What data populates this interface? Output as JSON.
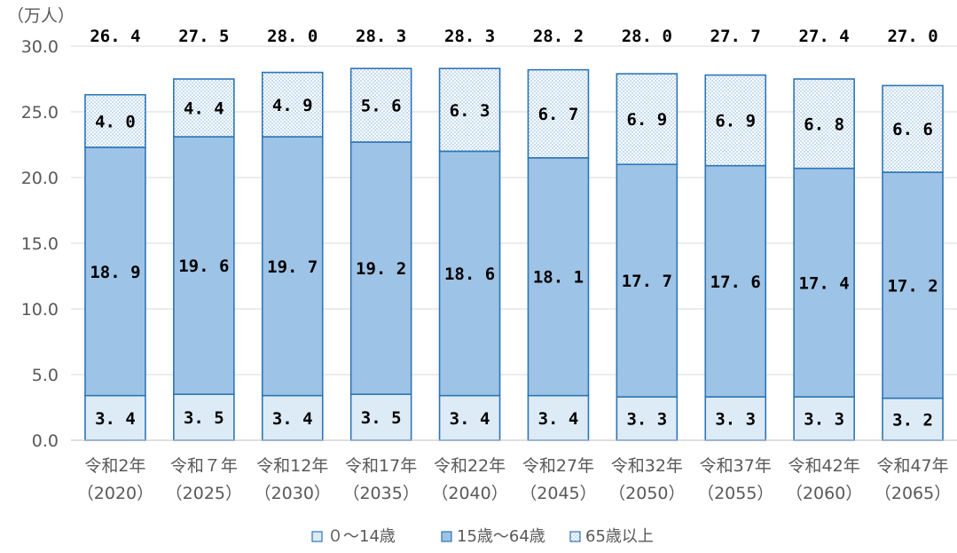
{
  "chart_data": {
    "type": "bar",
    "stacked": true,
    "unit": "（万人）",
    "categories": [
      [
        "令和2年",
        "（2020）"
      ],
      [
        "令和７年",
        "（2025）"
      ],
      [
        "令和12年",
        "（2030）"
      ],
      [
        "令和17年",
        "（2035）"
      ],
      [
        "令和22年",
        "（2040）"
      ],
      [
        "令和27年",
        "（2045）"
      ],
      [
        "令和32年",
        "（2050）"
      ],
      [
        "令和37年",
        "（2055）"
      ],
      [
        "令和42年",
        "（2060）"
      ],
      [
        "令和47年",
        "（2065）"
      ]
    ],
    "series": [
      {
        "name": "０～14歳",
        "values": [
          3.4,
          3.5,
          3.4,
          3.5,
          3.4,
          3.4,
          3.3,
          3.3,
          3.3,
          3.2
        ],
        "color": "#DDEBF7",
        "pattern": "solid"
      },
      {
        "name": "15歳～64歳",
        "values": [
          18.9,
          19.6,
          19.7,
          19.2,
          18.6,
          18.1,
          17.7,
          17.6,
          17.4,
          17.2
        ],
        "color": "#9DC3E6",
        "pattern": "solid"
      },
      {
        "name": "65歳以上",
        "values": [
          4.0,
          4.4,
          4.9,
          5.6,
          6.3,
          6.7,
          6.9,
          6.9,
          6.8,
          6.6
        ],
        "color": "#BDD7EE",
        "pattern": "dotted"
      }
    ],
    "totals": [
      26.4,
      27.5,
      28.0,
      28.3,
      28.3,
      28.2,
      28.0,
      27.7,
      27.4,
      27.0
    ],
    "ylim": [
      0,
      30
    ],
    "yticks": [
      0,
      5,
      10,
      15,
      20,
      25,
      30
    ],
    "ytick_labels": [
      "0.0",
      "5.0",
      "10.0",
      "15.0",
      "20.0",
      "25.0",
      "30.0"
    ],
    "grid": true,
    "legend_position": "bottom",
    "border_color": "#2E75B6"
  }
}
